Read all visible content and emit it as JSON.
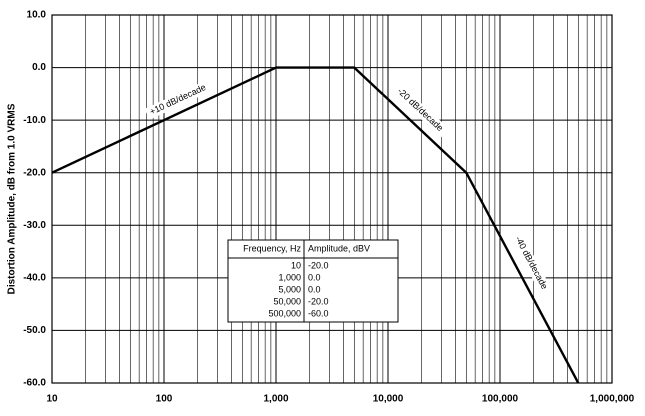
{
  "chart_data": {
    "type": "line",
    "y_label": "Distortion Amplitude, dB from 1.0 VRMS",
    "x": [
      10,
      1000,
      5000,
      50000,
      500000
    ],
    "series": [
      {
        "values": [
          -20,
          0,
          0,
          -20,
          -60
        ],
        "color": "#000000"
      }
    ],
    "xlim": [
      10,
      1000000
    ],
    "xticks": [
      10,
      100,
      {
        "value": 1000,
        "label": "1,000"
      },
      {
        "value": 10000,
        "label": "10,000"
      },
      {
        "value": 100000,
        "label": "100,000"
      },
      {
        "value": 1000000,
        "label": "1,000,000"
      }
    ],
    "x_log": true,
    "ylim": [
      -60,
      10
    ],
    "yticks": [
      {
        "value": -60,
        "label": "-60.0"
      },
      {
        "value": -50,
        "label": "-50.0"
      },
      {
        "value": -40,
        "label": "-40.0"
      },
      {
        "value": -30,
        "label": "-30.0"
      },
      {
        "value": -20,
        "label": "-20.0"
      },
      {
        "value": -10,
        "label": "-10.0"
      },
      {
        "value": 0,
        "label": "0.0"
      },
      {
        "value": 10,
        "label": "10.0"
      }
    ],
    "grid": true,
    "annotations": [
      "+10 dB/decade",
      "-20 dB/decade",
      "-40 dB/decade"
    ],
    "table": {
      "columns": [
        "Frequency, Hz",
        "Amplitude, dBV"
      ],
      "rows": [
        [
          "10",
          "-20.0"
        ],
        [
          "1,000",
          "0.0"
        ],
        [
          "5,000",
          "0.0"
        ],
        [
          "50,000",
          "-20.0"
        ],
        [
          "500,000",
          "-60.0"
        ]
      ]
    }
  }
}
